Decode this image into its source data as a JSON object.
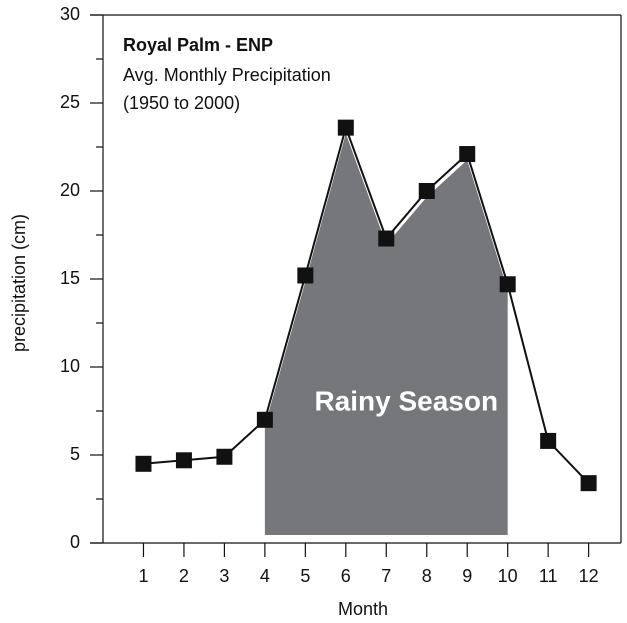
{
  "chart_data": {
    "type": "line",
    "title": "Royal Palm - ENP",
    "subtitle": "Avg. Monthly Precipitation",
    "subtitle2": "(1950 to 2000)",
    "x_label": "Month",
    "y_label": "precipitation (cm)",
    "x": [
      1,
      2,
      3,
      4,
      5,
      6,
      7,
      8,
      9,
      10,
      11,
      12
    ],
    "series": [
      {
        "name": "precipitation",
        "color": "#111111",
        "values": [
          4.5,
          4.7,
          4.9,
          7.0,
          15.2,
          23.6,
          17.3,
          20.0,
          22.1,
          14.7,
          5.8,
          3.4
        ]
      }
    ],
    "xlim": [
      0,
      12.8
    ],
    "xticks": [
      1,
      2,
      3,
      4,
      5,
      6,
      7,
      8,
      9,
      10,
      11,
      12
    ],
    "ylim": [
      0,
      30
    ],
    "yticks": [
      0,
      5,
      10,
      15,
      20,
      25,
      30
    ],
    "yminorticks": [
      2.5,
      7.5,
      12.5,
      17.5,
      22.5,
      27.5
    ],
    "shaded_region": {
      "label": "Rainy Season",
      "x": [
        4,
        10
      ],
      "color": "#76777a"
    }
  }
}
